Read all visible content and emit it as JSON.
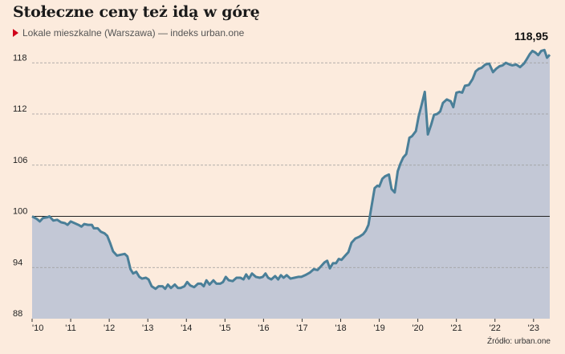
{
  "title": "Stołeczne ceny też idą w górę",
  "subtitle": "Lokale mieszkalne (Warszawa) — indeks urban.one",
  "source": "Źródło: urban.one",
  "colors": {
    "line": "#4a7f98",
    "area": "#c3c8d6",
    "baseline": "#222222",
    "grid": "#9a9a9a",
    "background": "#fcebdd",
    "marker": "#d0021b"
  },
  "chart_data": {
    "type": "area",
    "title": "Stołeczne ceny też idą w górę",
    "subtitle": "Lokale mieszkalne (Warszawa) — indeks urban.one",
    "xlabel": "",
    "ylabel": "",
    "ylim": [
      88,
      120
    ],
    "xlim": [
      2010.0,
      2023.42
    ],
    "yticks": [
      88,
      94,
      100,
      106,
      112,
      118
    ],
    "ytick_labels": [
      "88",
      "94",
      "100",
      "106",
      "112",
      "118"
    ],
    "xticks": [
      2010,
      2011,
      2012,
      2013,
      2014,
      2015,
      2016,
      2017,
      2018,
      2019,
      2020,
      2021,
      2022,
      2023
    ],
    "xtick_labels": [
      "'10",
      "'11",
      "'12",
      "'13",
      "'14",
      "'15",
      "'16",
      "'17",
      "'18",
      "'19",
      "'20",
      "'21",
      "'22",
      "'23"
    ],
    "reference_line": 100,
    "grid": "horizontal dashed",
    "end_label": "118,95",
    "series": [
      {
        "values": [
          [
            2010.0,
            100.0
          ],
          [
            2010.12,
            99.7
          ],
          [
            2010.2,
            99.4
          ],
          [
            2010.28,
            99.8
          ],
          [
            2010.4,
            99.9
          ],
          [
            2010.45,
            100.0
          ],
          [
            2010.55,
            99.5
          ],
          [
            2010.65,
            99.6
          ],
          [
            2010.75,
            99.3
          ],
          [
            2010.85,
            99.2
          ],
          [
            2010.92,
            99.0
          ],
          [
            2011.0,
            99.4
          ],
          [
            2011.1,
            99.2
          ],
          [
            2011.2,
            99.0
          ],
          [
            2011.28,
            98.8
          ],
          [
            2011.35,
            99.1
          ],
          [
            2011.45,
            99.0
          ],
          [
            2011.55,
            99.0
          ],
          [
            2011.6,
            98.6
          ],
          [
            2011.7,
            98.6
          ],
          [
            2011.78,
            98.2
          ],
          [
            2011.88,
            98.0
          ],
          [
            2011.95,
            97.7
          ],
          [
            2012.02,
            96.9
          ],
          [
            2012.1,
            95.9
          ],
          [
            2012.2,
            95.4
          ],
          [
            2012.3,
            95.5
          ],
          [
            2012.4,
            95.6
          ],
          [
            2012.47,
            95.3
          ],
          [
            2012.55,
            93.8
          ],
          [
            2012.62,
            93.3
          ],
          [
            2012.7,
            93.5
          ],
          [
            2012.78,
            92.9
          ],
          [
            2012.85,
            92.7
          ],
          [
            2012.95,
            92.8
          ],
          [
            2013.02,
            92.6
          ],
          [
            2013.1,
            91.8
          ],
          [
            2013.2,
            91.5
          ],
          [
            2013.28,
            91.8
          ],
          [
            2013.38,
            91.8
          ],
          [
            2013.45,
            91.5
          ],
          [
            2013.52,
            92.0
          ],
          [
            2013.6,
            91.6
          ],
          [
            2013.7,
            92.0
          ],
          [
            2013.78,
            91.6
          ],
          [
            2013.85,
            91.6
          ],
          [
            2013.95,
            91.8
          ],
          [
            2014.02,
            92.3
          ],
          [
            2014.1,
            91.9
          ],
          [
            2014.2,
            91.7
          ],
          [
            2014.3,
            92.1
          ],
          [
            2014.38,
            92.1
          ],
          [
            2014.45,
            91.8
          ],
          [
            2014.52,
            92.5
          ],
          [
            2014.6,
            92.0
          ],
          [
            2014.7,
            92.5
          ],
          [
            2014.78,
            92.1
          ],
          [
            2014.88,
            92.1
          ],
          [
            2014.95,
            92.3
          ],
          [
            2015.02,
            92.9
          ],
          [
            2015.1,
            92.5
          ],
          [
            2015.2,
            92.4
          ],
          [
            2015.3,
            92.8
          ],
          [
            2015.4,
            92.8
          ],
          [
            2015.48,
            92.6
          ],
          [
            2015.55,
            93.2
          ],
          [
            2015.62,
            92.7
          ],
          [
            2015.7,
            93.3
          ],
          [
            2015.8,
            92.9
          ],
          [
            2015.9,
            92.8
          ],
          [
            2015.98,
            92.9
          ],
          [
            2016.05,
            93.3
          ],
          [
            2016.12,
            92.8
          ],
          [
            2016.2,
            92.6
          ],
          [
            2016.3,
            93.0
          ],
          [
            2016.38,
            92.6
          ],
          [
            2016.45,
            93.1
          ],
          [
            2016.52,
            92.8
          ],
          [
            2016.6,
            93.1
          ],
          [
            2016.7,
            92.7
          ],
          [
            2016.8,
            92.8
          ],
          [
            2016.9,
            92.9
          ],
          [
            2016.98,
            92.9
          ],
          [
            2017.08,
            93.1
          ],
          [
            2017.2,
            93.4
          ],
          [
            2017.3,
            93.8
          ],
          [
            2017.4,
            93.7
          ],
          [
            2017.5,
            94.2
          ],
          [
            2017.58,
            94.6
          ],
          [
            2017.65,
            94.8
          ],
          [
            2017.72,
            93.9
          ],
          [
            2017.8,
            94.5
          ],
          [
            2017.88,
            94.5
          ],
          [
            2017.95,
            95.0
          ],
          [
            2018.02,
            94.9
          ],
          [
            2018.1,
            95.3
          ],
          [
            2018.2,
            95.8
          ],
          [
            2018.28,
            96.9
          ],
          [
            2018.38,
            97.4
          ],
          [
            2018.48,
            97.6
          ],
          [
            2018.58,
            97.9
          ],
          [
            2018.65,
            98.3
          ],
          [
            2018.72,
            99.0
          ],
          [
            2018.8,
            101.2
          ],
          [
            2018.88,
            103.3
          ],
          [
            2018.95,
            103.6
          ],
          [
            2019.0,
            103.5
          ],
          [
            2019.08,
            104.4
          ],
          [
            2019.15,
            104.7
          ],
          [
            2019.25,
            104.9
          ],
          [
            2019.32,
            103.2
          ],
          [
            2019.4,
            102.8
          ],
          [
            2019.48,
            105.3
          ],
          [
            2019.55,
            106.2
          ],
          [
            2019.62,
            106.9
          ],
          [
            2019.7,
            107.3
          ],
          [
            2019.78,
            109.2
          ],
          [
            2019.85,
            109.4
          ],
          [
            2019.95,
            110.0
          ],
          [
            2020.02,
            111.7
          ],
          [
            2020.1,
            113.1
          ],
          [
            2020.18,
            114.6
          ],
          [
            2020.26,
            109.6
          ],
          [
            2020.35,
            110.8
          ],
          [
            2020.42,
            111.9
          ],
          [
            2020.5,
            112.0
          ],
          [
            2020.58,
            112.3
          ],
          [
            2020.65,
            113.3
          ],
          [
            2020.75,
            113.7
          ],
          [
            2020.85,
            113.5
          ],
          [
            2020.92,
            112.8
          ],
          [
            2021.0,
            114.5
          ],
          [
            2021.08,
            114.6
          ],
          [
            2021.15,
            114.5
          ],
          [
            2021.22,
            115.3
          ],
          [
            2021.32,
            115.4
          ],
          [
            2021.42,
            116.1
          ],
          [
            2021.5,
            117.0
          ],
          [
            2021.58,
            117.3
          ],
          [
            2021.65,
            117.4
          ],
          [
            2021.75,
            117.8
          ],
          [
            2021.85,
            117.9
          ],
          [
            2021.95,
            116.9
          ],
          [
            2022.03,
            117.3
          ],
          [
            2022.12,
            117.6
          ],
          [
            2022.2,
            117.7
          ],
          [
            2022.28,
            118.0
          ],
          [
            2022.38,
            117.8
          ],
          [
            2022.45,
            117.7
          ],
          [
            2022.55,
            117.8
          ],
          [
            2022.65,
            117.5
          ],
          [
            2022.75,
            117.9
          ],
          [
            2022.82,
            118.4
          ],
          [
            2022.9,
            119.0
          ],
          [
            2022.97,
            119.4
          ],
          [
            2023.05,
            119.2
          ],
          [
            2023.12,
            118.9
          ],
          [
            2023.2,
            119.4
          ],
          [
            2023.28,
            119.5
          ],
          [
            2023.35,
            118.6
          ],
          [
            2023.42,
            118.95
          ]
        ]
      }
    ]
  }
}
